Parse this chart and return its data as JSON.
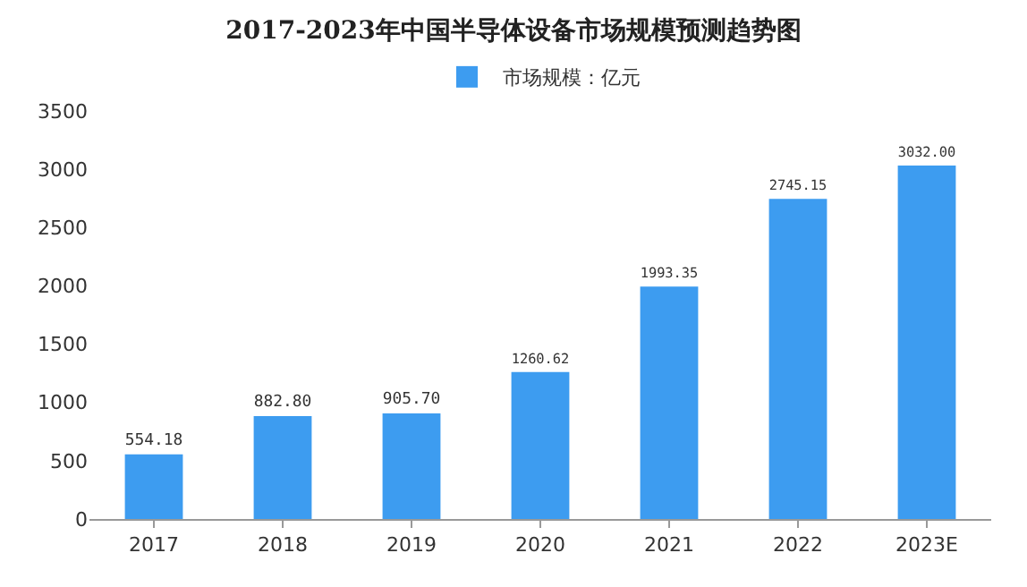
{
  "chart_data": {
    "type": "bar",
    "title": "2017-2023年中国半导体设备市场规模预测趋势图",
    "categories": [
      "2017",
      "2018",
      "2019",
      "2020",
      "2021",
      "2022",
      "2023E"
    ],
    "series": [
      {
        "name": "市场规模：亿元",
        "color": "#3d9cf0",
        "values": [
          554.18,
          882.8,
          905.7,
          1260.62,
          1993.35,
          2745.15,
          3032.0
        ],
        "value_labels": [
          "554.18",
          "882.80",
          "905.70",
          "1260.62",
          "1993.35",
          "2745.15",
          "3032.00"
        ]
      }
    ],
    "ylim": [
      0,
      3500
    ],
    "yticks": [
      0,
      500,
      1000,
      1500,
      2000,
      2500,
      3000,
      3500
    ],
    "grid": false,
    "legend": "top"
  }
}
